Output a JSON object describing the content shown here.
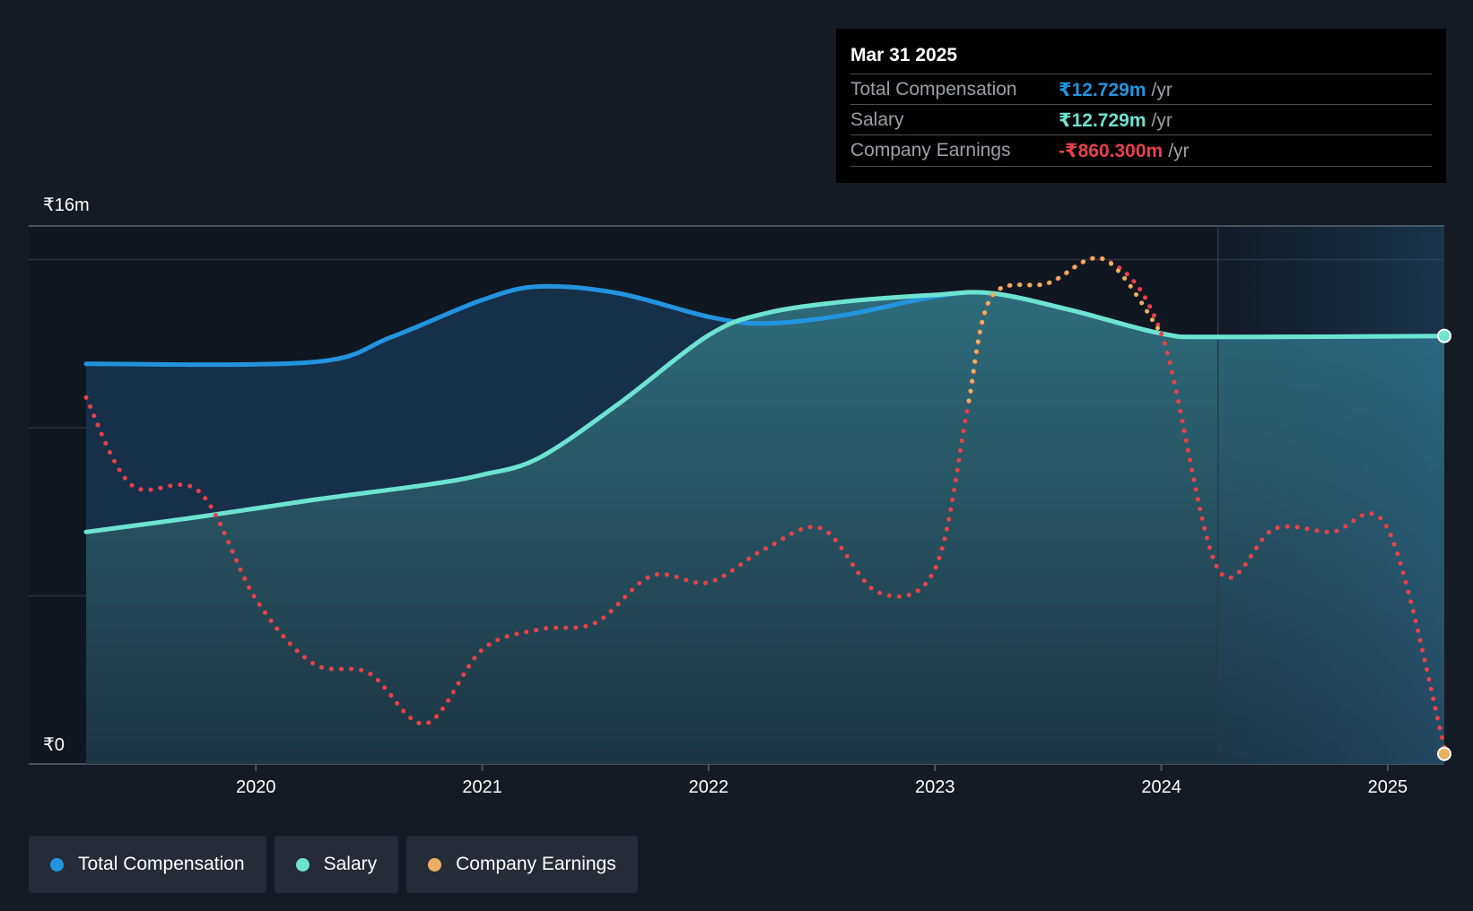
{
  "tooltip": {
    "date": "Mar 31 2025",
    "rows": [
      {
        "label": "Total Compensation",
        "value": "₹12.729m",
        "unit": "/yr",
        "color": "#2394df"
      },
      {
        "label": "Salary",
        "value": "₹12.729m",
        "unit": "/yr",
        "color": "#6ee3cf"
      },
      {
        "label": "Company Earnings",
        "value": "-₹860.300m",
        "unit": "/yr",
        "color": "#e8404a"
      }
    ]
  },
  "legend": [
    {
      "label": "Total Compensation",
      "color": "#2394df"
    },
    {
      "label": "Salary",
      "color": "#6ee3cf"
    },
    {
      "label": "Company Earnings",
      "color": "#e8b060"
    }
  ],
  "chart_data": {
    "type": "area",
    "y_top_label": "₹16m",
    "y_bottom_label": "₹0",
    "ylim": [
      0,
      16
    ],
    "xlim": [
      2019.25,
      2025.25
    ],
    "x_ticks": [
      "2020",
      "2021",
      "2022",
      "2023",
      "2024",
      "2025"
    ],
    "series": [
      {
        "name": "Total Compensation",
        "color": "#2394df",
        "points": [
          [
            2019.25,
            11.9
          ],
          [
            2020.25,
            11.95
          ],
          [
            2020.6,
            12.7
          ],
          [
            2021.0,
            13.8
          ],
          [
            2021.25,
            14.2
          ],
          [
            2021.6,
            14.0
          ],
          [
            2022.0,
            13.3
          ],
          [
            2022.25,
            13.1
          ],
          [
            2022.6,
            13.35
          ],
          [
            2023.0,
            13.9
          ],
          [
            2023.25,
            14.0
          ],
          [
            2023.6,
            13.5
          ],
          [
            2024.0,
            12.8
          ],
          [
            2024.25,
            12.7
          ],
          [
            2025.25,
            12.729
          ]
        ]
      },
      {
        "name": "Salary",
        "color": "#6ee3cf",
        "points": [
          [
            2019.25,
            6.9
          ],
          [
            2019.75,
            7.35
          ],
          [
            2020.25,
            7.85
          ],
          [
            2020.75,
            8.3
          ],
          [
            2021.0,
            8.6
          ],
          [
            2021.25,
            9.1
          ],
          [
            2021.6,
            10.7
          ],
          [
            2022.0,
            12.75
          ],
          [
            2022.25,
            13.4
          ],
          [
            2022.6,
            13.75
          ],
          [
            2023.0,
            13.95
          ],
          [
            2023.25,
            14.0
          ],
          [
            2023.6,
            13.5
          ],
          [
            2024.0,
            12.8
          ],
          [
            2024.25,
            12.7
          ],
          [
            2025.25,
            12.729
          ]
        ]
      },
      {
        "name": "Company Earnings",
        "color": "#e8404a",
        "positive_color": "#e8b060",
        "style": "dotted",
        "points": [
          [
            2019.25,
            10.9
          ],
          [
            2019.45,
            8.3
          ],
          [
            2019.75,
            8.1
          ],
          [
            2020.0,
            4.9
          ],
          [
            2020.25,
            3.0
          ],
          [
            2020.5,
            2.7
          ],
          [
            2020.75,
            1.2
          ],
          [
            2021.0,
            3.4
          ],
          [
            2021.25,
            4.0
          ],
          [
            2021.5,
            4.2
          ],
          [
            2021.75,
            5.6
          ],
          [
            2022.0,
            5.4
          ],
          [
            2022.25,
            6.4
          ],
          [
            2022.5,
            7.0
          ],
          [
            2022.75,
            5.1
          ],
          [
            2023.0,
            5.8
          ],
          [
            2023.15,
            10.8
          ],
          [
            2023.25,
            13.9
          ],
          [
            2023.5,
            14.3
          ],
          [
            2023.75,
            15.0
          ],
          [
            2024.0,
            12.8
          ],
          [
            2024.25,
            5.8
          ],
          [
            2024.5,
            7.0
          ],
          [
            2024.75,
            6.9
          ],
          [
            2025.0,
            7.0
          ],
          [
            2025.25,
            0.5
          ]
        ]
      }
    ],
    "forecast_shade_start": 2024.25,
    "grid": true
  }
}
